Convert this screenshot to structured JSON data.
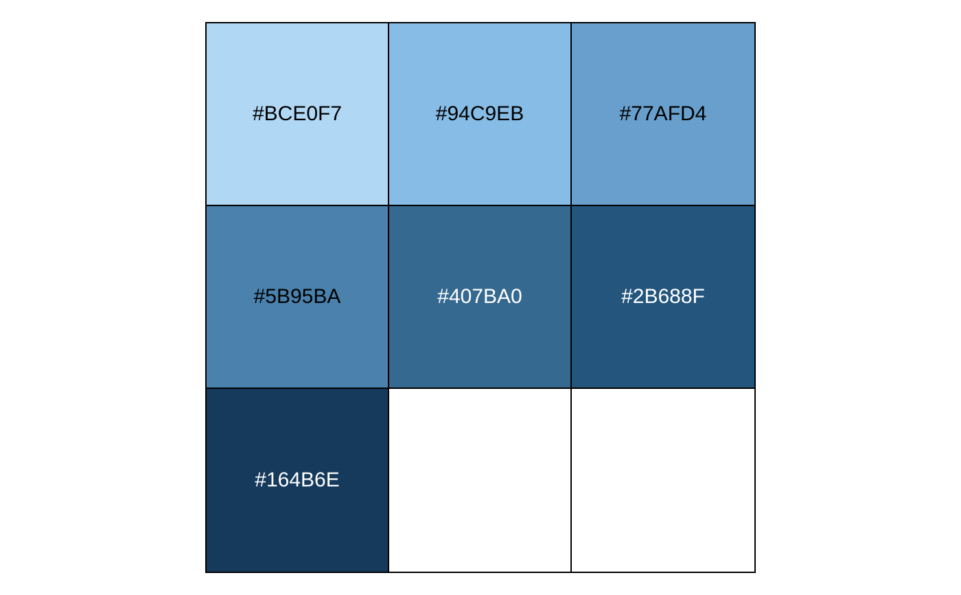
{
  "palette": {
    "swatches": [
      {
        "label": "#BCE0F7",
        "color": "#B0D8F4",
        "text_color": "#000000"
      },
      {
        "label": "#94C9EB",
        "color": "#86BCE5",
        "text_color": "#000000"
      },
      {
        "label": "#77AFD4",
        "color": "#689FCC",
        "text_color": "#000000"
      },
      {
        "label": "#5B95BA",
        "color": "#4A82AD",
        "text_color": "#000000"
      },
      {
        "label": "#407BA0",
        "color": "#35698F",
        "text_color": "#FFFFFF"
      },
      {
        "label": "#2B688F",
        "color": "#23557D",
        "text_color": "#FFFFFF"
      },
      {
        "label": "#164B6E",
        "color": "#163A5C",
        "text_color": "#FFFFFF"
      },
      {
        "label": "",
        "color": "#FFFFFF",
        "text_color": "#000000"
      },
      {
        "label": "",
        "color": "#FFFFFF",
        "text_color": "#000000"
      }
    ]
  }
}
